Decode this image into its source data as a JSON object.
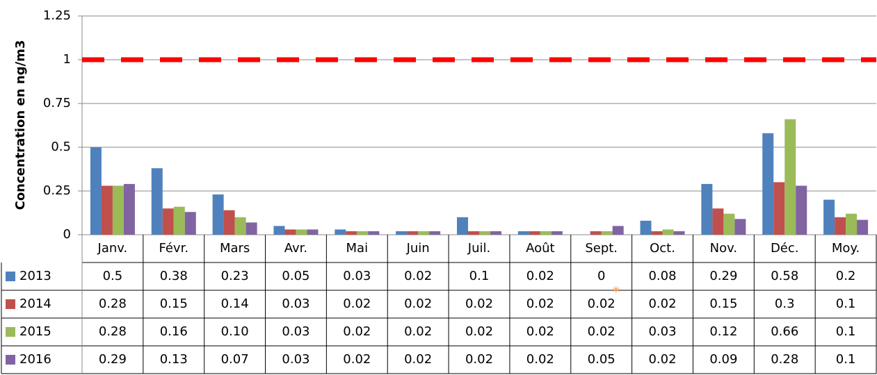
{
  "chart_data": {
    "type": "bar",
    "y_label": "Concentration en ng/m3",
    "categories": [
      "Janv.",
      "Févr.",
      "Mars",
      "Avr.",
      "Mai",
      "Juin",
      "Juil.",
      "Août",
      "Sept.",
      "Oct.",
      "Nov.",
      "Déc.",
      "Moy."
    ],
    "series": [
      {
        "name": "2013",
        "color": "#4f81bd",
        "values": [
          0.5,
          0.38,
          0.23,
          0.05,
          0.03,
          0.02,
          0.1,
          0.02,
          0,
          0.08,
          0.29,
          0.58,
          0.2
        ],
        "value_labels": [
          "0.5",
          "0.38",
          "0.23",
          "0.05",
          "0.03",
          "0.02",
          "0.1",
          "0.02",
          "0",
          "0.08",
          "0.29",
          "0.58",
          "0.2"
        ]
      },
      {
        "name": "2014",
        "color": "#c0504d",
        "values": [
          0.28,
          0.15,
          0.14,
          0.03,
          0.02,
          0.02,
          0.02,
          0.02,
          0.02,
          0.02,
          0.15,
          0.3,
          0.1
        ],
        "value_labels": [
          "0.28",
          "0.15",
          "0.14",
          "0.03",
          "0.02",
          "0.02",
          "0.02",
          "0.02",
          "0.02",
          "0.02",
          "0.15",
          "0.3",
          "0.1"
        ]
      },
      {
        "name": "2015",
        "color": "#9bbb59",
        "values": [
          0.28,
          0.16,
          0.1,
          0.03,
          0.02,
          0.02,
          0.02,
          0.02,
          0.02,
          0.03,
          0.12,
          0.66,
          0.12
        ],
        "value_labels": [
          "0.28",
          "0.16",
          "0.10",
          "0.03",
          "0.02",
          "0.02",
          "0.02",
          "0.02",
          "0.02",
          "0.03",
          "0.12",
          "0.66",
          "0.1"
        ]
      },
      {
        "name": "2016",
        "color": "#8064a2",
        "values": [
          0.29,
          0.13,
          0.07,
          0.03,
          0.02,
          0.02,
          0.02,
          0.02,
          0.05,
          0.02,
          0.09,
          0.28,
          0.085
        ],
        "value_labels": [
          "0.29",
          "0.13",
          "0.07",
          "0.03",
          "0.02",
          "0.02",
          "0.02",
          "0.02",
          "0.05",
          "0.02",
          "0.09",
          "0.28",
          "0.1"
        ]
      }
    ],
    "annotation": "*",
    "threshold": 1,
    "threshold_color": "#ff0000",
    "ylim": [
      0,
      1.25
    ],
    "yticks": [
      0,
      0.25,
      0.5,
      0.75,
      1,
      1.25
    ],
    "grid": true
  }
}
